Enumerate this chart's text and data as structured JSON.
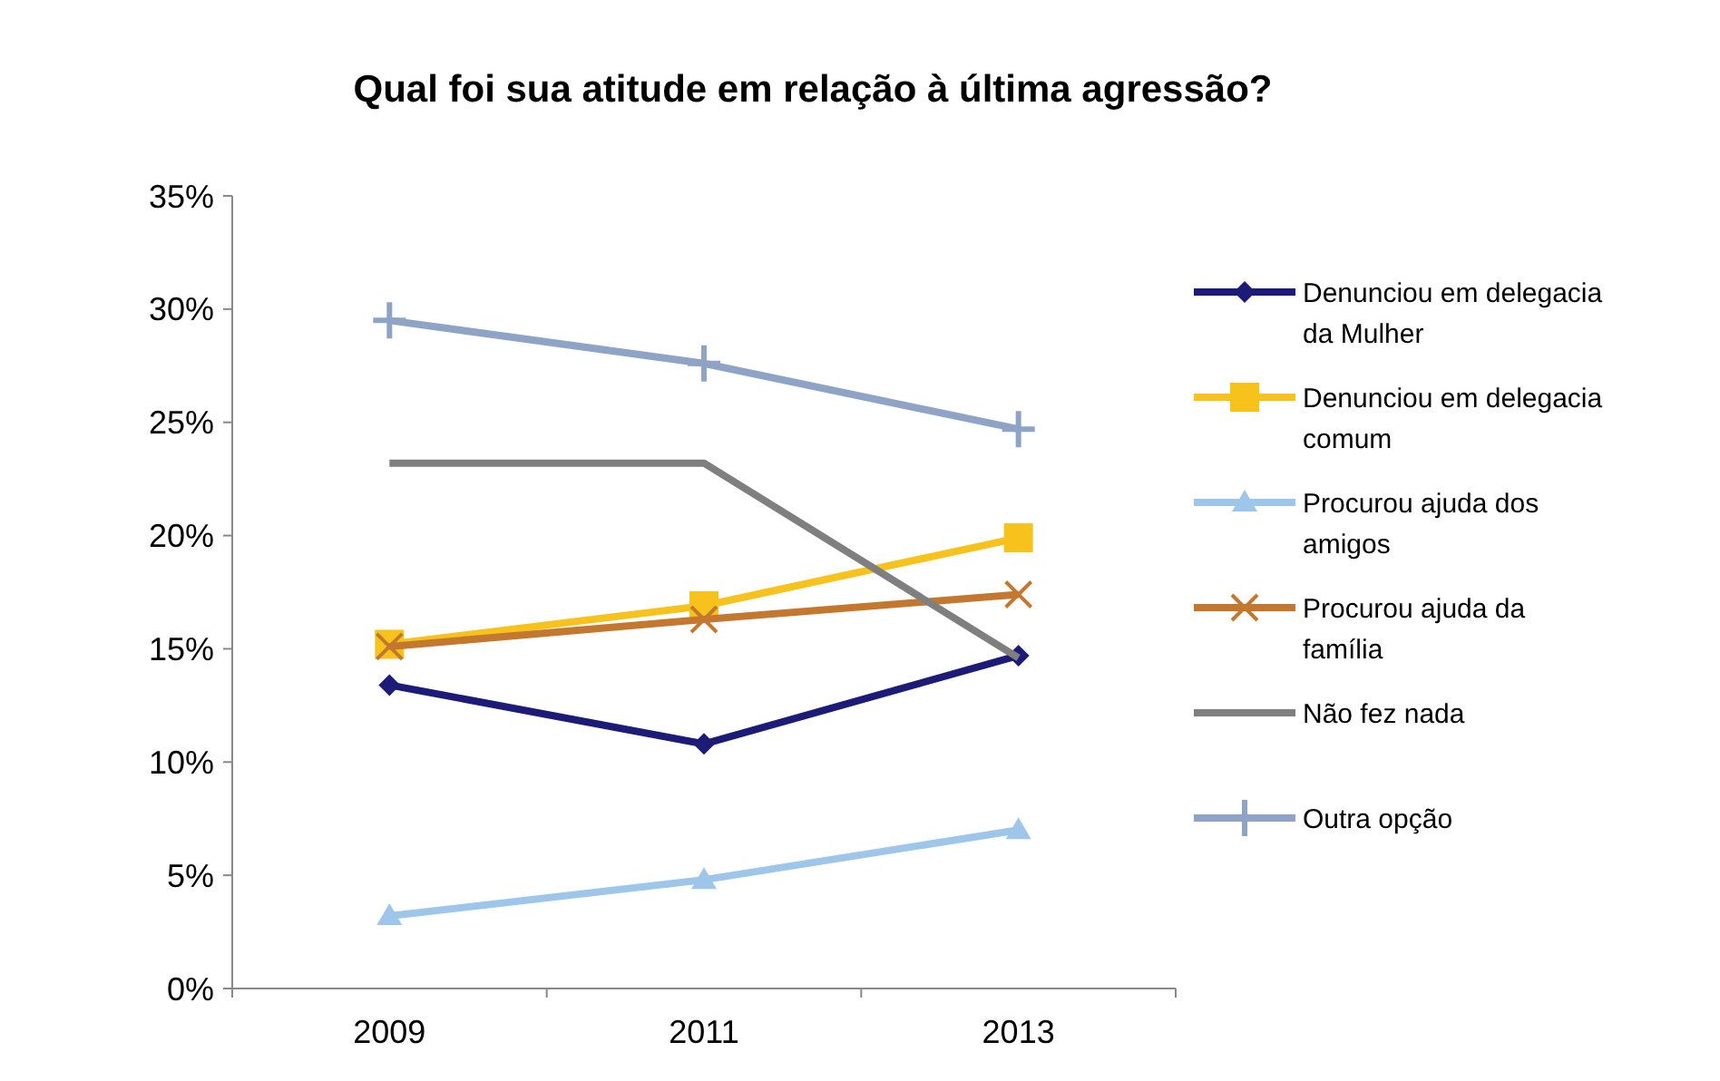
{
  "chart_data": {
    "type": "line",
    "title": "Qual foi sua atitude em relação à última agressão?",
    "categories": [
      "2009",
      "2011",
      "2013"
    ],
    "series": [
      {
        "name": "Denunciou em delegacia da Mulher",
        "color": "#1c1c78",
        "marker": "diamond",
        "values": [
          13.4,
          10.8,
          14.7
        ]
      },
      {
        "name": "Denunciou em delegacia comum",
        "color": "#f7c21b",
        "marker": "square",
        "values": [
          15.2,
          16.9,
          19.9
        ]
      },
      {
        "name": "Procurou ajuda dos amigos",
        "color": "#9dc6ea",
        "marker": "triangle",
        "values": [
          3.2,
          4.8,
          7.0
        ]
      },
      {
        "name": "Procurou ajuda da família",
        "color": "#c4782f",
        "marker": "cross",
        "values": [
          15.1,
          16.3,
          17.4
        ]
      },
      {
        "name": "Não fez nada",
        "color": "#7f7f7f",
        "marker": "none",
        "values": [
          23.2,
          23.2,
          14.6
        ]
      },
      {
        "name": "Outra opção",
        "color": "#8fa3c6",
        "marker": "plus",
        "values": [
          29.5,
          27.6,
          24.7
        ]
      }
    ],
    "ylim": [
      0,
      35
    ],
    "yticks": [
      {
        "value": 0,
        "label": "0%"
      },
      {
        "value": 5,
        "label": "5%"
      },
      {
        "value": 10,
        "label": "10%"
      },
      {
        "value": 15,
        "label": "15%"
      },
      {
        "value": 20,
        "label": "20%"
      },
      {
        "value": 25,
        "label": "25%"
      },
      {
        "value": 30,
        "label": "30%"
      },
      {
        "value": 35,
        "label": "35%"
      }
    ],
    "grid": false,
    "legend": "right",
    "line_style": "solid"
  }
}
